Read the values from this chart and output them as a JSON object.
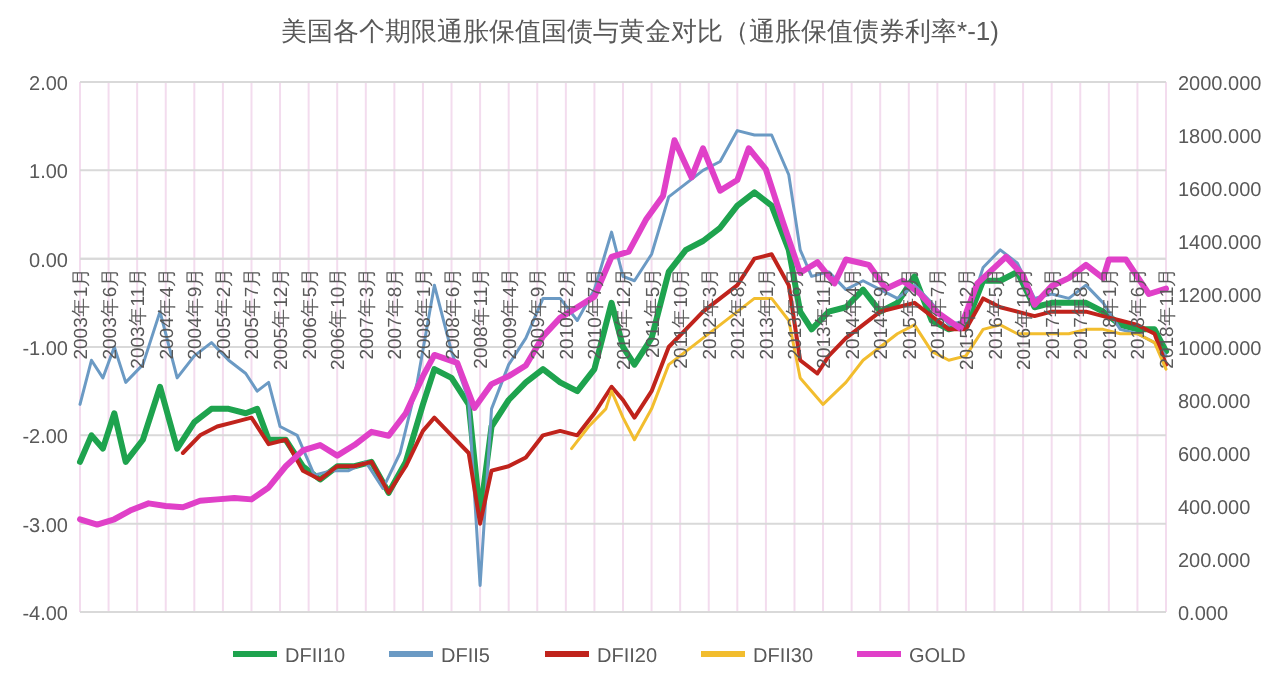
{
  "chart_data": {
    "type": "line",
    "title": "美国各个期限通胀保值国债与黄金对比（通胀保值债券利率*-1)",
    "xlim": [
      "2003-01",
      "2018-11"
    ],
    "xticks": [
      {
        "value": "2003-01",
        "label": "2003年1月"
      },
      {
        "value": "2003-06",
        "label": "2003年6月"
      },
      {
        "value": "2003-11",
        "label": "2003年11月"
      },
      {
        "value": "2004-04",
        "label": "2004年4月"
      },
      {
        "value": "2004-09",
        "label": "2004年9月"
      },
      {
        "value": "2005-02",
        "label": "2005年2月"
      },
      {
        "value": "2005-07",
        "label": "2005年7月"
      },
      {
        "value": "2005-12",
        "label": "2005年12月"
      },
      {
        "value": "2006-05",
        "label": "2006年5月"
      },
      {
        "value": "2006-10",
        "label": "2006年10月"
      },
      {
        "value": "2007-03",
        "label": "2007年3月"
      },
      {
        "value": "2007-08",
        "label": "2007年8月"
      },
      {
        "value": "2008-01",
        "label": "2008年1月"
      },
      {
        "value": "2008-06",
        "label": "2008年6月"
      },
      {
        "value": "2008-11",
        "label": "2008年11月"
      },
      {
        "value": "2009-04",
        "label": "2009年4月"
      },
      {
        "value": "2009-09",
        "label": "2009年9月"
      },
      {
        "value": "2010-02",
        "label": "2010年2月"
      },
      {
        "value": "2010-07",
        "label": "2010年7月"
      },
      {
        "value": "2010-12",
        "label": "2010年12月"
      },
      {
        "value": "2011-05",
        "label": "2011年5月"
      },
      {
        "value": "2011-10",
        "label": "2011年10月"
      },
      {
        "value": "2012-03",
        "label": "2012年3月"
      },
      {
        "value": "2012-08",
        "label": "2012年8月"
      },
      {
        "value": "2013-01",
        "label": "2013年1月"
      },
      {
        "value": "2013-06",
        "label": "2013年6月"
      },
      {
        "value": "2013-11",
        "label": "2013年11月"
      },
      {
        "value": "2014-04",
        "label": "2014年4月"
      },
      {
        "value": "2014-09",
        "label": "2014年9月"
      },
      {
        "value": "2015-02",
        "label": "2015年2月"
      },
      {
        "value": "2015-07",
        "label": "2015年7月"
      },
      {
        "value": "2015-12",
        "label": "2015年12月"
      },
      {
        "value": "2016-05",
        "label": "2016年5月"
      },
      {
        "value": "2016-10",
        "label": "2016年10月"
      },
      {
        "value": "2017-03",
        "label": "2017年3月"
      },
      {
        "value": "2017-08",
        "label": "2017年8月"
      },
      {
        "value": "2018-01",
        "label": "2018年1月"
      },
      {
        "value": "2018-06",
        "label": "2018年6月"
      },
      {
        "value": "2018-11",
        "label": "2018年11月"
      }
    ],
    "ylim": [
      -4,
      2
    ],
    "yticks": [
      {
        "value": -4,
        "label": "-4.00"
      },
      {
        "value": -3,
        "label": "-3.00"
      },
      {
        "value": -2,
        "label": "-2.00"
      },
      {
        "value": -1,
        "label": "-1.00"
      },
      {
        "value": 0,
        "label": "0.00"
      },
      {
        "value": 1,
        "label": "1.00"
      },
      {
        "value": 2,
        "label": "2.00"
      }
    ],
    "y2lim": [
      0,
      2000
    ],
    "y2ticks": [
      {
        "value": 0,
        "label": "0.000"
      },
      {
        "value": 200,
        "label": "200.000"
      },
      {
        "value": 400,
        "label": "400.000"
      },
      {
        "value": 600,
        "label": "600.000"
      },
      {
        "value": 800,
        "label": "800.000"
      },
      {
        "value": 1000,
        "label": "1000.000"
      },
      {
        "value": 1200,
        "label": "1200.000"
      },
      {
        "value": 1400,
        "label": "1400.000"
      },
      {
        "value": 1600,
        "label": "1600.000"
      },
      {
        "value": 1800,
        "label": "1800.000"
      },
      {
        "value": 2000,
        "label": "2000.000"
      }
    ],
    "grid": true,
    "legend": "bottom",
    "marker": "none",
    "line_style": "solid",
    "series": [
      {
        "name": "DFII10",
        "color": "#1ea34e",
        "x": [
          "2003-01",
          "2003-03",
          "2003-05",
          "2003-07",
          "2003-09",
          "2003-12",
          "2004-03",
          "2004-06",
          "2004-09",
          "2004-12",
          "2005-03",
          "2005-06",
          "2005-08",
          "2005-10",
          "2006-01",
          "2006-04",
          "2006-07",
          "2006-10",
          "2007-01",
          "2007-04",
          "2007-07",
          "2007-10",
          "2008-01",
          "2008-03",
          "2008-06",
          "2008-09",
          "2008-11",
          "2009-01",
          "2009-04",
          "2009-07",
          "2009-10",
          "2010-01",
          "2010-04",
          "2010-07",
          "2010-10",
          "2010-12",
          "2011-02",
          "2011-05",
          "2011-08",
          "2011-11",
          "2012-02",
          "2012-05",
          "2012-08",
          "2012-11",
          "2013-02",
          "2013-05",
          "2013-07",
          "2013-09",
          "2013-12",
          "2014-03",
          "2014-06",
          "2014-09",
          "2014-12",
          "2015-03",
          "2015-06",
          "2015-09",
          "2015-12",
          "2016-03",
          "2016-06",
          "2016-09",
          "2016-12",
          "2017-03",
          "2017-06",
          "2017-09",
          "2017-12",
          "2018-03",
          "2018-06",
          "2018-09",
          "2018-11"
        ],
        "values": [
          -2.3,
          -2.0,
          -2.15,
          -1.75,
          -2.3,
          -2.05,
          -1.45,
          -2.15,
          -1.85,
          -1.7,
          -1.7,
          -1.75,
          -1.7,
          -2.05,
          -2.05,
          -2.35,
          -2.5,
          -2.35,
          -2.35,
          -2.3,
          -2.65,
          -2.3,
          -1.65,
          -1.25,
          -1.35,
          -1.65,
          -2.9,
          -1.9,
          -1.6,
          -1.4,
          -1.25,
          -1.4,
          -1.5,
          -1.25,
          -0.5,
          -1.0,
          -1.2,
          -0.9,
          -0.15,
          0.1,
          0.2,
          0.35,
          0.6,
          0.75,
          0.6,
          0.1,
          -0.6,
          -0.8,
          -0.6,
          -0.55,
          -0.35,
          -0.6,
          -0.5,
          -0.2,
          -0.7,
          -0.8,
          -0.75,
          -0.25,
          -0.25,
          -0.15,
          -0.55,
          -0.5,
          -0.5,
          -0.5,
          -0.6,
          -0.75,
          -0.8,
          -0.8,
          -1.05
        ]
      },
      {
        "name": "DFII5",
        "color": "#6b9ac4",
        "x": [
          "2003-01",
          "2003-03",
          "2003-05",
          "2003-07",
          "2003-09",
          "2003-12",
          "2004-03",
          "2004-06",
          "2004-09",
          "2004-12",
          "2005-03",
          "2005-06",
          "2005-08",
          "2005-10",
          "2005-12",
          "2006-03",
          "2006-06",
          "2006-09",
          "2006-12",
          "2007-03",
          "2007-06",
          "2007-09",
          "2007-12",
          "2008-03",
          "2008-06",
          "2008-09",
          "2008-11",
          "2009-01",
          "2009-04",
          "2009-07",
          "2009-10",
          "2010-01",
          "2010-04",
          "2010-07",
          "2010-10",
          "2010-12",
          "2011-02",
          "2011-05",
          "2011-08",
          "2011-11",
          "2012-02",
          "2012-05",
          "2012-08",
          "2012-11",
          "2013-02",
          "2013-05",
          "2013-07",
          "2013-09",
          "2013-12",
          "2014-03",
          "2014-06",
          "2014-09",
          "2014-12",
          "2015-03",
          "2015-06",
          "2015-09",
          "2015-12",
          "2016-03",
          "2016-06",
          "2016-09",
          "2016-12",
          "2017-03",
          "2017-06",
          "2017-09",
          "2017-12",
          "2018-03",
          "2018-06",
          "2018-09",
          "2018-11"
        ],
        "values": [
          -1.65,
          -1.15,
          -1.35,
          -1.0,
          -1.4,
          -1.2,
          -0.6,
          -1.35,
          -1.1,
          -0.95,
          -1.15,
          -1.3,
          -1.5,
          -1.4,
          -1.9,
          -2.0,
          -2.45,
          -2.4,
          -2.4,
          -2.3,
          -2.6,
          -2.2,
          -1.4,
          -0.3,
          -1.05,
          -1.6,
          -3.7,
          -1.7,
          -1.2,
          -0.9,
          -0.45,
          -0.45,
          -0.7,
          -0.35,
          0.3,
          -0.2,
          -0.25,
          0.05,
          0.7,
          0.85,
          1.0,
          1.1,
          1.45,
          1.4,
          1.4,
          0.95,
          0.1,
          -0.2,
          -0.15,
          -0.35,
          -0.25,
          -0.35,
          -0.45,
          -0.3,
          -0.5,
          -0.75,
          -0.7,
          -0.1,
          0.1,
          -0.05,
          -0.45,
          -0.4,
          -0.45,
          -0.3,
          -0.5,
          -0.8,
          -0.85,
          -0.95,
          -1.1
        ]
      },
      {
        "name": "DFII20",
        "color": "#c0231c",
        "x": [
          "2004-07",
          "2004-10",
          "2005-01",
          "2005-04",
          "2005-07",
          "2005-10",
          "2006-01",
          "2006-04",
          "2006-07",
          "2006-10",
          "2007-01",
          "2007-04",
          "2007-07",
          "2007-10",
          "2008-01",
          "2008-03",
          "2008-06",
          "2008-09",
          "2008-11",
          "2009-01",
          "2009-04",
          "2009-07",
          "2009-10",
          "2010-01",
          "2010-04",
          "2010-07",
          "2010-10",
          "2010-12",
          "2011-02",
          "2011-05",
          "2011-08",
          "2011-11",
          "2012-02",
          "2012-05",
          "2012-08",
          "2012-11",
          "2013-02",
          "2013-05",
          "2013-07",
          "2013-10",
          "2013-12",
          "2014-03",
          "2014-06",
          "2014-09",
          "2014-12",
          "2015-03",
          "2015-06",
          "2015-09",
          "2015-12",
          "2016-03",
          "2016-06",
          "2016-09",
          "2016-12",
          "2017-03",
          "2017-06",
          "2017-09",
          "2017-12",
          "2018-03",
          "2018-06",
          "2018-09",
          "2018-11"
        ],
        "values": [
          -2.2,
          -2.0,
          -1.9,
          -1.85,
          -1.8,
          -2.1,
          -2.05,
          -2.4,
          -2.5,
          -2.35,
          -2.35,
          -2.3,
          -2.65,
          -2.35,
          -1.95,
          -1.8,
          -2.0,
          -2.2,
          -3.0,
          -2.4,
          -2.35,
          -2.25,
          -2.0,
          -1.95,
          -2.0,
          -1.75,
          -1.45,
          -1.6,
          -1.8,
          -1.5,
          -1.0,
          -0.8,
          -0.6,
          -0.45,
          -0.3,
          0.0,
          0.05,
          -0.3,
          -1.15,
          -1.3,
          -1.1,
          -0.9,
          -0.75,
          -0.6,
          -0.55,
          -0.5,
          -0.65,
          -0.8,
          -0.8,
          -0.45,
          -0.55,
          -0.6,
          -0.65,
          -0.6,
          -0.6,
          -0.6,
          -0.65,
          -0.7,
          -0.75,
          -0.85,
          -1.2
        ]
      },
      {
        "name": "DFII30",
        "color": "#f2bd2e",
        "x": [
          "2010-03",
          "2010-06",
          "2010-09",
          "2010-10",
          "2010-12",
          "2011-02",
          "2011-05",
          "2011-08",
          "2011-11",
          "2012-02",
          "2012-05",
          "2012-08",
          "2012-11",
          "2013-02",
          "2013-05",
          "2013-07",
          "2013-09",
          "2013-11",
          "2014-03",
          "2014-06",
          "2014-09",
          "2014-12",
          "2015-03",
          "2015-06",
          "2015-09",
          "2015-12",
          "2016-03",
          "2016-06",
          "2016-09",
          "2016-12",
          "2017-03",
          "2017-06",
          "2017-09",
          "2017-12",
          "2018-03",
          "2018-06",
          "2018-09",
          "2018-11"
        ],
        "values": [
          -2.15,
          -1.9,
          -1.7,
          -1.5,
          -1.8,
          -2.05,
          -1.7,
          -1.2,
          -1.05,
          -0.9,
          -0.75,
          -0.6,
          -0.45,
          -0.45,
          -0.7,
          -1.35,
          -1.5,
          -1.65,
          -1.4,
          -1.15,
          -1.0,
          -0.85,
          -0.75,
          -1.05,
          -1.15,
          -1.1,
          -0.8,
          -0.75,
          -0.85,
          -0.85,
          -0.85,
          -0.85,
          -0.8,
          -0.8,
          -0.85,
          -0.85,
          -0.95,
          -1.25
        ]
      },
      {
        "name": "GOLD",
        "color": "#e040c8",
        "axis": "y2",
        "x": [
          "2003-01",
          "2003-04",
          "2003-07",
          "2003-10",
          "2004-01",
          "2004-04",
          "2004-07",
          "2004-10",
          "2005-01",
          "2005-04",
          "2005-07",
          "2005-10",
          "2006-01",
          "2006-04",
          "2006-07",
          "2006-10",
          "2007-01",
          "2007-04",
          "2007-07",
          "2007-10",
          "2008-01",
          "2008-03",
          "2008-07",
          "2008-10",
          "2009-01",
          "2009-04",
          "2009-07",
          "2009-10",
          "2010-01",
          "2010-04",
          "2010-07",
          "2010-10",
          "2011-01",
          "2011-04",
          "2011-07",
          "2011-09",
          "2011-12",
          "2012-02",
          "2012-05",
          "2012-08",
          "2012-10",
          "2013-01",
          "2013-04",
          "2013-07",
          "2013-10",
          "2014-01",
          "2014-03",
          "2014-07",
          "2014-10",
          "2015-01",
          "2015-04",
          "2015-07",
          "2015-11",
          "2016-02",
          "2016-07",
          "2016-10",
          "2016-12",
          "2017-03",
          "2017-06",
          "2017-09",
          "2017-12",
          "2018-01",
          "2018-04",
          "2018-08",
          "2018-11"
        ],
        "values": [
          350,
          330,
          350,
          385,
          410,
          400,
          395,
          420,
          425,
          430,
          425,
          470,
          550,
          610,
          630,
          590,
          630,
          680,
          665,
          750,
          890,
          970,
          940,
          770,
          860,
          890,
          930,
          1040,
          1110,
          1150,
          1190,
          1340,
          1360,
          1480,
          1570,
          1780,
          1640,
          1750,
          1590,
          1630,
          1750,
          1670,
          1470,
          1280,
          1320,
          1240,
          1330,
          1310,
          1220,
          1250,
          1200,
          1130,
          1070,
          1240,
          1340,
          1270,
          1160,
          1230,
          1260,
          1310,
          1260,
          1330,
          1330,
          1200,
          1220
        ]
      }
    ]
  }
}
